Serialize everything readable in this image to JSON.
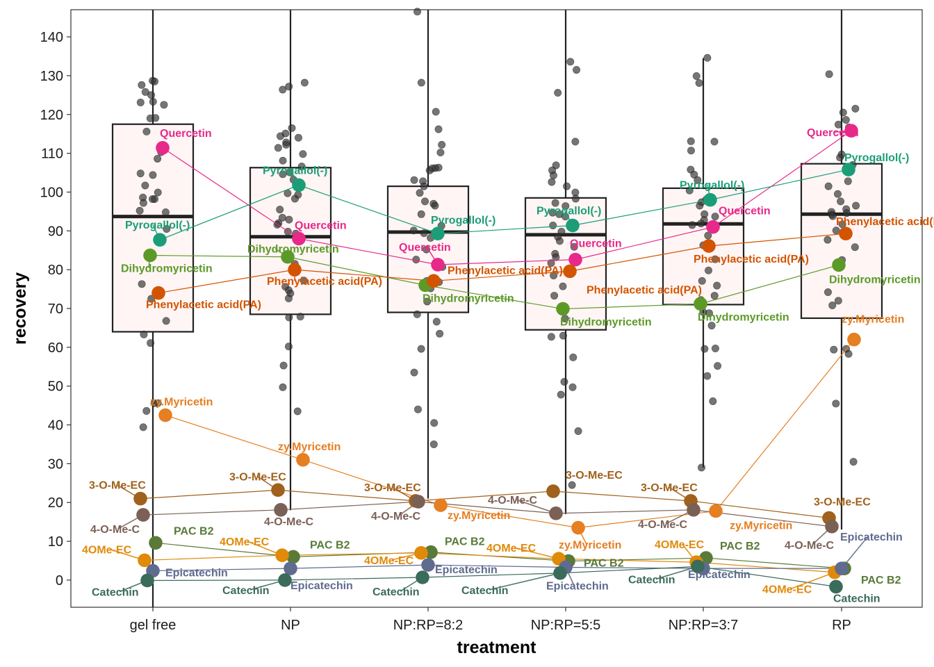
{
  "chart_data": {
    "type": "box",
    "title": "",
    "xlabel": "treatment",
    "ylabel": "recovery",
    "categories": [
      "gel free",
      "NP",
      "NP:RP=8:2",
      "NP:RP=5:5",
      "NP:RP=3:7",
      "RP"
    ],
    "ylim": [
      -7,
      147
    ],
    "yticks": [
      0,
      10,
      20,
      30,
      40,
      50,
      60,
      70,
      80,
      90,
      100,
      110,
      120,
      130,
      140
    ],
    "grid": false,
    "legend": "none",
    "boxes": [
      {
        "category": "gel free",
        "q1": 64,
        "median": 93.7,
        "q3": 117.5,
        "whisker_low": -7,
        "whisker_high": 147
      },
      {
        "category": "NP",
        "q1": 68.5,
        "median": 88.5,
        "q3": 106.3,
        "whisker_low": 18,
        "whisker_high": 147
      },
      {
        "category": "NP:RP=8:2",
        "q1": 69,
        "median": 89.7,
        "q3": 101.5,
        "whisker_low": 21,
        "whisker_high": 147
      },
      {
        "category": "NP:RP=5:5",
        "q1": 64.5,
        "median": 89,
        "q3": 98.5,
        "whisker_low": 17,
        "whisker_high": 147
      },
      {
        "category": "NP:RP=3:7",
        "q1": 71,
        "median": 91.8,
        "q3": 101,
        "whisker_low": 29,
        "whisker_high": 134.5
      },
      {
        "category": "RP",
        "q1": 67.5,
        "median": 94.3,
        "q3": 107.3,
        "whisker_low": 13,
        "whisker_high": 147
      }
    ],
    "jitter_points": [
      {
        "category": "gel free",
        "values": [
          128.7,
          128.5,
          127.6,
          125.8,
          125,
          123.3,
          123.1,
          122.5,
          119.1,
          119,
          115.6,
          110.3,
          108.6,
          104.8,
          104.4,
          101.7,
          99.9,
          98.6,
          98.2,
          98.2,
          97.2,
          95.2,
          94.8,
          90.5,
          76.3,
          72.5,
          66.8,
          63.3,
          61.1,
          45.6,
          45.6,
          43.6,
          39.4
        ]
      },
      {
        "category": "NP",
        "values": [
          128.2,
          127.2,
          126.4,
          116.5,
          115.1,
          114.4,
          114,
          112.8,
          112.2,
          111.4,
          109.8,
          108.1,
          106.6,
          105.1,
          104.6,
          103.2,
          99.7,
          99.3,
          98.3,
          95.5,
          93.4,
          92.9,
          92,
          91.6,
          89.8,
          89.3,
          81.5,
          77.2,
          75.6,
          74.7,
          73.9,
          72.6,
          67.9,
          67.7,
          60.2,
          55.3,
          49.7,
          43.5
        ]
      },
      {
        "category": "NP:RP=8:2",
        "values": [
          146.5,
          128.2,
          120.7,
          116.2,
          112.2,
          110.2,
          106.3,
          106.2,
          106.1,
          105.6,
          103.1,
          102.8,
          101.5,
          99.8,
          97.6,
          97,
          96.5,
          94.3,
          91.3,
          90.1,
          89.4,
          88.2,
          85.2,
          82.6,
          80.7,
          77.1,
          76.8,
          75.2,
          71.8,
          68.5,
          66.6,
          63.5,
          59.6,
          53.5,
          44,
          40.5,
          35
        ]
      },
      {
        "category": "NP:RP=5:5",
        "values": [
          133.6,
          131.5,
          125.6,
          113,
          106.9,
          105.6,
          104.3,
          102.6,
          101.5,
          99.9,
          98.3,
          97.2,
          96.4,
          94.7,
          94.3,
          93.7,
          91.4,
          89.8,
          88.5,
          87.4,
          85.9,
          84.1,
          83.2,
          81.7,
          80.1,
          78.5,
          75.7,
          73.3,
          67.4,
          63,
          62.7,
          57.4,
          51.1,
          49.7,
          47.8,
          38.4,
          24.5
        ]
      },
      {
        "category": "NP:RP=3:7",
        "values": [
          134.6,
          129.9,
          128.1,
          113.1,
          113,
          110.7,
          105.8,
          104.5,
          103.1,
          100.4,
          98.1,
          97.4,
          96.5,
          94.3,
          93.7,
          92.8,
          91.9,
          91.5,
          91.1,
          88.8,
          86.3,
          82.7,
          79.8,
          77.1,
          75.9,
          73.3,
          72.2,
          69.1,
          68.8,
          65.6,
          59.7,
          59.6,
          55.2,
          52.6,
          46.1,
          29
        ]
      },
      {
        "category": "RP",
        "values": [
          130.4,
          121.5,
          120.5,
          118.6,
          117.4,
          116.7,
          115.5,
          109.7,
          108.9,
          107,
          102.8,
          101.5,
          99.5,
          97.6,
          96.5,
          95.6,
          94.9,
          94.6,
          94.2,
          93.8,
          91.7,
          90.1,
          87.7,
          85.8,
          82.5,
          74.2,
          72,
          70.8,
          59.6,
          59.4,
          58.3,
          45.5,
          30.5
        ]
      }
    ],
    "series": [
      {
        "name": "Quercetin",
        "color": "#e7298a",
        "values": [
          111.4,
          88,
          81.3,
          82.6,
          91,
          115.8
        ]
      },
      {
        "name": "Pyrogallol(-)",
        "color": "#1b9e77",
        "values": [
          87.7,
          101.8,
          89.3,
          91.4,
          98,
          105.8
        ]
      },
      {
        "name": "Dihydromyricetin",
        "color": "#5c9a28",
        "values": [
          83.7,
          83.3,
          76,
          69.9,
          71.2,
          81.2
        ]
      },
      {
        "name": "Phenylacetic acid(PA)",
        "color": "#d35400",
        "values": [
          74,
          80,
          77.1,
          79.6,
          86.1,
          89.3
        ]
      },
      {
        "name": "zy.Myricetin",
        "color": "#e67e22",
        "values": [
          42.5,
          31,
          19.3,
          13.5,
          17.8,
          62
        ]
      },
      {
        "name": "3-O-Me-EC",
        "color": "#a0611c",
        "values": [
          21,
          23.2,
          20.4,
          22.9,
          20.4,
          16
        ]
      },
      {
        "name": "4-O-Me-C",
        "color": "#7b6056",
        "values": [
          16.8,
          18.1,
          20.2,
          17.2,
          18.1,
          13.8
        ]
      },
      {
        "name": "PAC B2",
        "color": "#5a7a38",
        "values": [
          9.6,
          6,
          7.2,
          4.9,
          5.7,
          3
        ]
      },
      {
        "name": "4OMe-EC",
        "color": "#e08a0a",
        "values": [
          5.1,
          6.4,
          7,
          5.5,
          4.6,
          2
        ]
      },
      {
        "name": "Epicatechin",
        "color": "#5f6b8f",
        "values": [
          2.4,
          3,
          3.9,
          3.3,
          3,
          3
        ]
      },
      {
        "name": "Catechin",
        "color": "#3b6b5a",
        "values": [
          -0.1,
          0,
          0.7,
          1.8,
          3.5,
          -1.7
        ]
      }
    ],
    "point_labels": [
      {
        "series": "Quercetin",
        "category": "gel free",
        "text": "Quercetin"
      },
      {
        "series": "Quercetin",
        "category": "NP",
        "text": "Quercetin"
      },
      {
        "series": "Quercetin",
        "category": "NP:RP=8:2",
        "text": "Quercetin"
      },
      {
        "series": "Quercetin",
        "category": "NP:RP=5:5",
        "text": "Quercetin"
      },
      {
        "series": "Quercetin",
        "category": "NP:RP=3:7",
        "text": "Quercetin"
      },
      {
        "series": "Quercetin",
        "category": "RP",
        "text": "Quercetin"
      },
      {
        "series": "Pyrogallol(-)",
        "category": "gel free",
        "text": "Pyrogallol(-)"
      },
      {
        "series": "Pyrogallol(-)",
        "category": "NP",
        "text": "Pyrogallol(-)"
      },
      {
        "series": "Pyrogallol(-)",
        "category": "NP:RP=8:2",
        "text": "Pyrogallol(-)"
      },
      {
        "series": "Pyrogallol(-)",
        "category": "NP:RP=5:5",
        "text": "Pyrogallol(-)"
      },
      {
        "series": "Pyrogallol(-)",
        "category": "NP:RP=3:7",
        "text": "Pyrogallol(-)"
      },
      {
        "series": "Pyrogallol(-)",
        "category": "RP",
        "text": "Pyrogallol(-)"
      },
      {
        "series": "Dihydromyricetin",
        "category": "gel free",
        "text": "Dihydromyricetin"
      },
      {
        "series": "Dihydromyricetin",
        "category": "NP",
        "text": "Dihydromyricetin"
      },
      {
        "series": "Dihydromyricetin",
        "category": "NP:RP=8:2",
        "text": "Dihydromyricetin"
      },
      {
        "series": "Dihydromyricetin",
        "category": "NP:RP=5:5",
        "text": "Dihydromyricetin"
      },
      {
        "series": "Dihydromyricetin",
        "category": "NP:RP=3:7",
        "text": "Dihydromyricetin"
      },
      {
        "series": "Dihydromyricetin",
        "category": "RP",
        "text": "Dihydromyricetin"
      },
      {
        "series": "Phenylacetic acid(PA)",
        "category": "gel free",
        "text": "Phenylacetic acid(PA)"
      },
      {
        "series": "Phenylacetic acid(PA)",
        "category": "NP",
        "text": "Phenylacetic acid(PA)"
      },
      {
        "series": "Phenylacetic acid(PA)",
        "category": "NP:RP=8:2",
        "text": "Phenylacetic acid(PA)"
      },
      {
        "series": "Phenylacetic acid(PA)",
        "category": "NP:RP=5:5",
        "text": "Phenylacetic acid(PA)"
      },
      {
        "series": "Phenylacetic acid(PA)",
        "category": "NP:RP=3:7",
        "text": "Phenylacetic acid(PA)"
      },
      {
        "series": "Phenylacetic acid(PA)",
        "category": "RP",
        "text": "Phenylacetic acid(PA)"
      },
      {
        "series": "zy.Myricetin",
        "category": "gel free",
        "text": "zy.Myricetin"
      },
      {
        "series": "zy.Myricetin",
        "category": "NP",
        "text": "zy.Myricetin"
      },
      {
        "series": "zy.Myricetin",
        "category": "NP:RP=8:2",
        "text": "zy.Myricetin"
      },
      {
        "series": "zy.Myricetin",
        "category": "NP:RP=5:5",
        "text": "zy.Myricetin"
      },
      {
        "series": "zy.Myricetin",
        "category": "NP:RP=3:7",
        "text": "zy.Myricetin"
      },
      {
        "series": "zy.Myricetin",
        "category": "RP",
        "text": "zy.Myricetin"
      },
      {
        "series": "3-O-Me-EC",
        "category": "gel free",
        "text": "3-O-Me-EC"
      },
      {
        "series": "3-O-Me-EC",
        "category": "NP",
        "text": "3-O-Me-EC"
      },
      {
        "series": "3-O-Me-EC",
        "category": "NP:RP=8:2",
        "text": "3-O-Me-EC"
      },
      {
        "series": "3-O-Me-EC",
        "category": "NP:RP=5:5",
        "text": "3-O-Me-EC"
      },
      {
        "series": "3-O-Me-EC",
        "category": "NP:RP=3:7",
        "text": "3-O-Me-EC"
      },
      {
        "series": "3-O-Me-EC",
        "category": "RP",
        "text": "3-O-Me-EC"
      },
      {
        "series": "4-O-Me-C",
        "category": "gel free",
        "text": "4-O-Me-C"
      },
      {
        "series": "4-O-Me-C",
        "category": "NP",
        "text": "4-O-Me-C"
      },
      {
        "series": "4-O-Me-C",
        "category": "NP:RP=8:2",
        "text": "4-O-Me-C"
      },
      {
        "series": "4-O-Me-C",
        "category": "NP:RP=5:5",
        "text": "4-O-Me-C"
      },
      {
        "series": "4-O-Me-C",
        "category": "NP:RP=3:7",
        "text": "4-O-Me-C"
      },
      {
        "series": "4-O-Me-C",
        "category": "RP",
        "text": "4-O-Me-C"
      },
      {
        "series": "PAC B2",
        "category": "gel free",
        "text": "PAC B2"
      },
      {
        "series": "PAC B2",
        "category": "NP",
        "text": "PAC B2"
      },
      {
        "series": "PAC B2",
        "category": "NP:RP=8:2",
        "text": "PAC B2"
      },
      {
        "series": "PAC B2",
        "category": "NP:RP=5:5",
        "text": "PAC B2"
      },
      {
        "series": "PAC B2",
        "category": "NP:RP=3:7",
        "text": "PAC B2"
      },
      {
        "series": "PAC B2",
        "category": "RP",
        "text": "PAC B2"
      },
      {
        "series": "4OMe-EC",
        "category": "gel free",
        "text": "4OMe-EC"
      },
      {
        "series": "4OMe-EC",
        "category": "NP",
        "text": "4OMe-EC"
      },
      {
        "series": "4OMe-EC",
        "category": "NP:RP=8:2",
        "text": "4OMe-EC"
      },
      {
        "series": "4OMe-EC",
        "category": "NP:RP=5:5",
        "text": "4OMe-EC"
      },
      {
        "series": "4OMe-EC",
        "category": "NP:RP=3:7",
        "text": "4OMe-EC"
      },
      {
        "series": "4OMe-EC",
        "category": "RP",
        "text": "4OMe-EC"
      },
      {
        "series": "Epicatechin",
        "category": "gel free",
        "text": "Epicatechin"
      },
      {
        "series": "Epicatechin",
        "category": "NP",
        "text": "Epicatechin"
      },
      {
        "series": "Epicatechin",
        "category": "NP:RP=8:2",
        "text": "Epicatechin"
      },
      {
        "series": "Epicatechin",
        "category": "NP:RP=5:5",
        "text": "Epicatechin"
      },
      {
        "series": "Epicatechin",
        "category": "NP:RP=3:7",
        "text": "Epicatechin"
      },
      {
        "series": "Epicatechin",
        "category": "RP",
        "text": "Epicatechin"
      },
      {
        "series": "Catechin",
        "category": "gel free",
        "text": "Catechin"
      },
      {
        "series": "Catechin",
        "category": "NP",
        "text": "Catechin"
      },
      {
        "series": "Catechin",
        "category": "NP:RP=8:2",
        "text": "Catechin"
      },
      {
        "series": "Catechin",
        "category": "NP:RP=5:5",
        "text": "Catechin"
      },
      {
        "series": "Catechin",
        "category": "NP:RP=3:7",
        "text": "Catechin"
      },
      {
        "series": "Catechin",
        "category": "RP",
        "text": "Catechin"
      }
    ]
  }
}
